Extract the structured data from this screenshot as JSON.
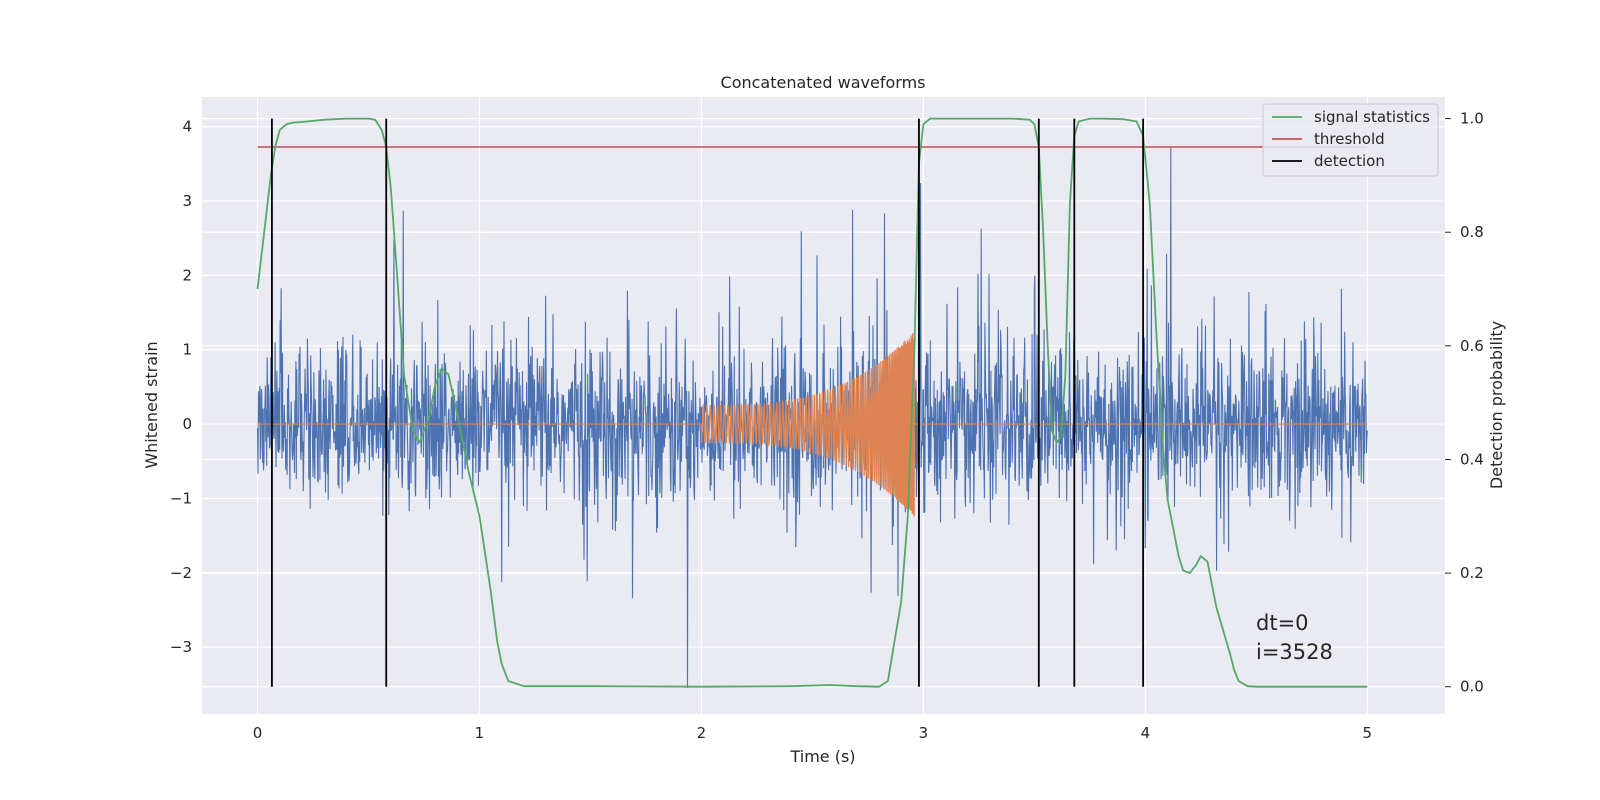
{
  "chart_data": {
    "type": "line",
    "title": "Concatenated waveforms",
    "xlabel": "Time (s)",
    "ylabel": "Whitened strain",
    "y2label": "Detection probability",
    "xlim": [
      -0.25,
      5.35
    ],
    "ylim": [
      -3.9,
      4.4
    ],
    "y2lim": [
      -0.048,
      1.038
    ],
    "xticks": [
      0,
      1,
      2,
      3,
      4,
      5
    ],
    "yticks": [
      -3,
      -2,
      -1,
      0,
      1,
      2,
      3,
      4
    ],
    "y2ticks": [
      0.0,
      0.2,
      0.4,
      0.6,
      0.8,
      1.0
    ],
    "grid": true,
    "legend_position": "top-right",
    "series": [
      {
        "name": "",
        "color": "#4c72b0",
        "kind": "noise",
        "axis": "left",
        "x_range": [
          0,
          5
        ],
        "typical_range": [
          -1.2,
          1.3
        ],
        "max": 3.72,
        "min": -3.55
      },
      {
        "name": "",
        "color": "#dd8452",
        "kind": "chirp",
        "axis": "left",
        "x_range": [
          0,
          5
        ],
        "chirp_start": 2.0,
        "chirp_end": 2.96,
        "start_amplitude": 0.25,
        "end_amplitude": 1.25
      },
      {
        "name": "signal statistics",
        "color": "#55a868",
        "axis": "right",
        "x": [
          0,
          0.03,
          0.06,
          0.08,
          0.1,
          0.13,
          0.16,
          0.2,
          0.3,
          0.4,
          0.5,
          0.53,
          0.56,
          0.58,
          0.6,
          0.63,
          0.66,
          0.7,
          0.73,
          0.77,
          0.8,
          0.83,
          0.86,
          0.9,
          0.95,
          1.0,
          1.05,
          1.08,
          1.1,
          1.13,
          1.2,
          1.5,
          2.0,
          2.4,
          2.58,
          2.7,
          2.8,
          2.84,
          2.87,
          2.9,
          2.93,
          2.96,
          2.98,
          3.0,
          3.03,
          3.1,
          3.2,
          3.4,
          3.48,
          3.5,
          3.52,
          3.54,
          3.56,
          3.58,
          3.6,
          3.62,
          3.64,
          3.66,
          3.68,
          3.7,
          3.75,
          3.8,
          3.9,
          3.96,
          3.99,
          4.02,
          4.05,
          4.08,
          4.1,
          4.13,
          4.15,
          4.17,
          4.2,
          4.23,
          4.25,
          4.28,
          4.3,
          4.32,
          4.35,
          4.38,
          4.4,
          4.42,
          4.46,
          4.5,
          4.6,
          5.0
        ],
        "y": [
          0.7,
          0.8,
          0.9,
          0.95,
          0.98,
          0.99,
          0.993,
          0.994,
          0.998,
          1.0,
          1.0,
          0.998,
          0.98,
          0.95,
          0.88,
          0.72,
          0.55,
          0.45,
          0.43,
          0.47,
          0.53,
          0.56,
          0.55,
          0.48,
          0.38,
          0.3,
          0.17,
          0.08,
          0.04,
          0.01,
          0.001,
          0.001,
          0.0,
          0.001,
          0.003,
          0.001,
          0.0,
          0.01,
          0.08,
          0.15,
          0.3,
          0.6,
          0.92,
          0.99,
          1.0,
          1.0,
          1.0,
          1.0,
          0.998,
          0.99,
          0.95,
          0.8,
          0.6,
          0.45,
          0.43,
          0.44,
          0.55,
          0.85,
          0.97,
          0.995,
          1.0,
          1.0,
          0.999,
          0.995,
          0.97,
          0.85,
          0.62,
          0.42,
          0.33,
          0.27,
          0.23,
          0.205,
          0.2,
          0.215,
          0.23,
          0.22,
          0.18,
          0.14,
          0.1,
          0.06,
          0.03,
          0.01,
          0.001,
          0.0,
          0.0,
          0.0
        ]
      },
      {
        "name": "threshold",
        "color": "#c44e52",
        "axis": "right",
        "x": [
          0,
          5
        ],
        "y": [
          0.95,
          0.95
        ]
      },
      {
        "name": "detection",
        "color": "#000000",
        "axis": "right",
        "vertical_lines": [
          0.065,
          0.58,
          2.98,
          3.52,
          3.68,
          3.99
        ],
        "y_range": [
          0,
          1
        ]
      }
    ],
    "annotations": [
      "dt=0",
      "i=3528"
    ]
  }
}
